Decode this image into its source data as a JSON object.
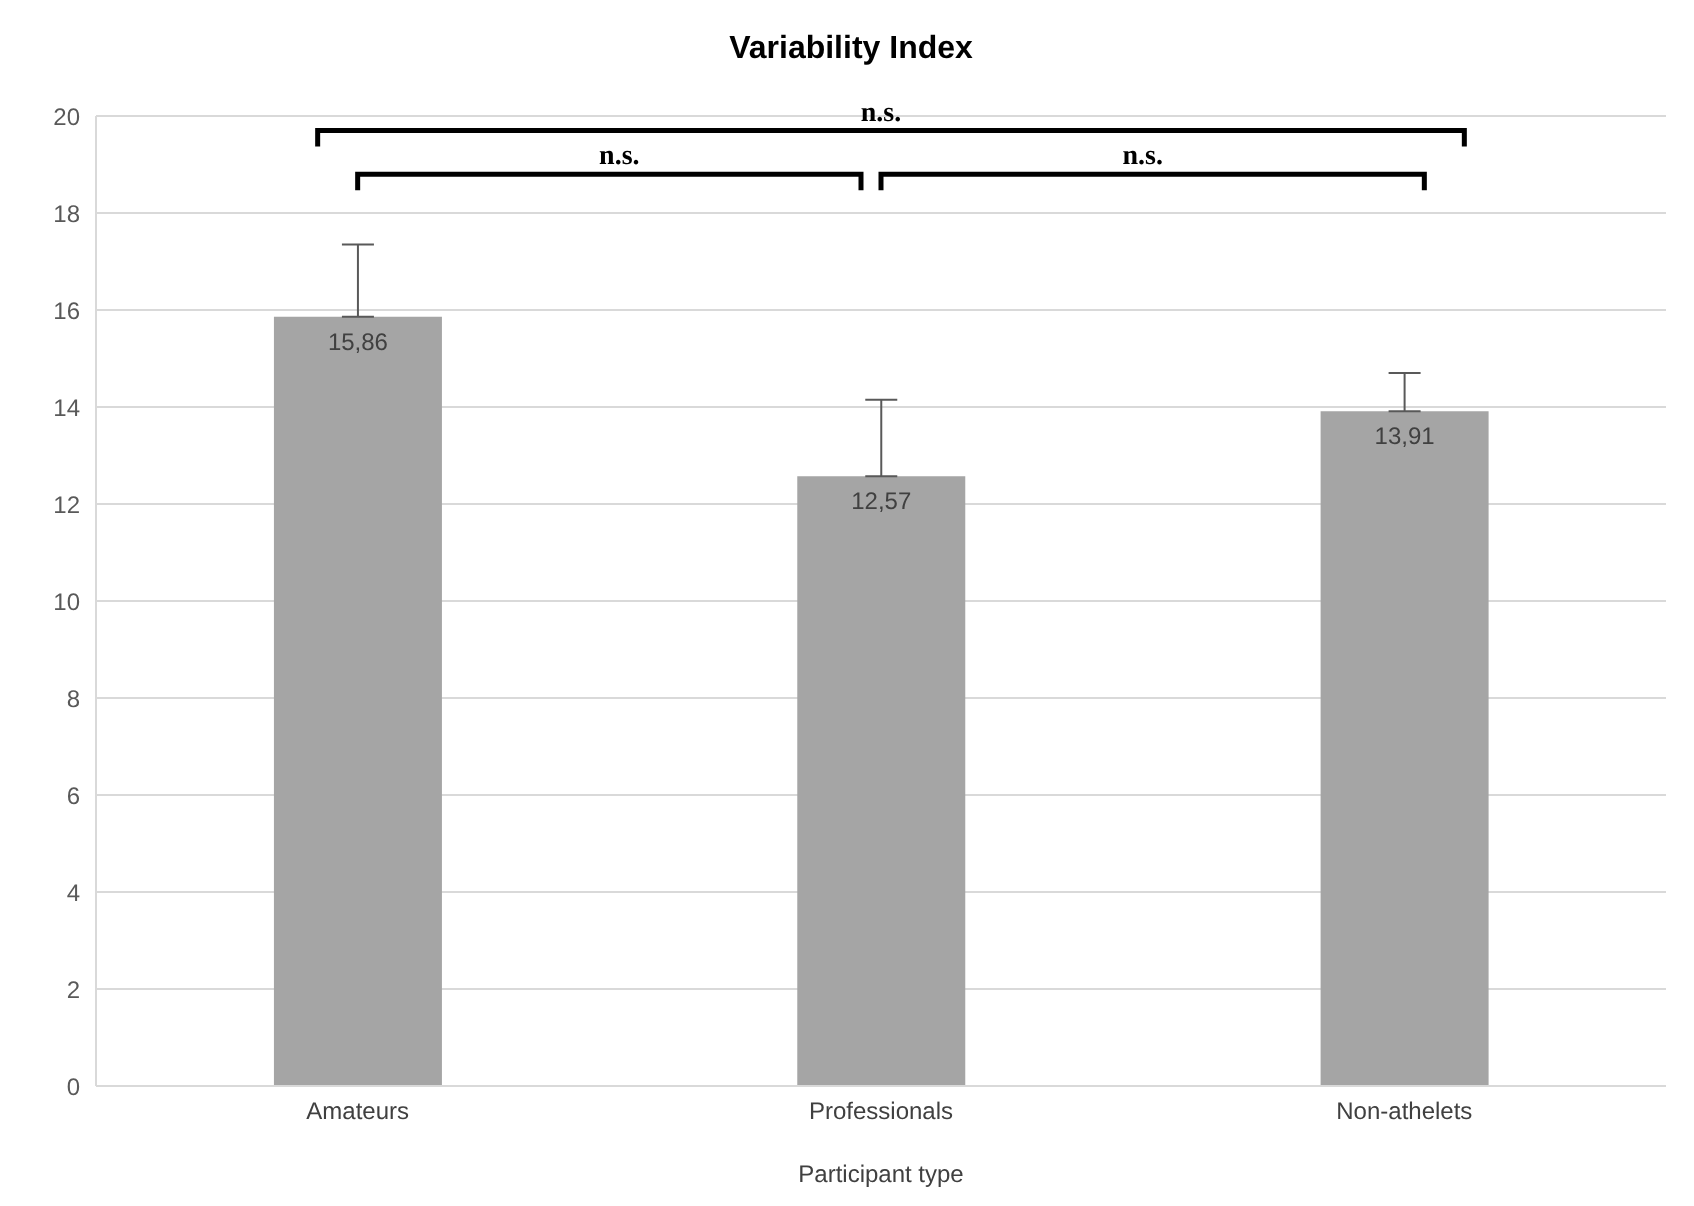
{
  "chart_data": {
    "type": "bar",
    "title": "Variability Index",
    "xlabel": "Participant type",
    "categories": [
      "Amateurs",
      "Professionals",
      "Non-athelets"
    ],
    "values": [
      15.86,
      12.57,
      13.91
    ],
    "value_labels": [
      "15,86",
      "12,57",
      "13,91"
    ],
    "errors": [
      [
        15.86,
        17.35
      ],
      [
        12.57,
        14.15
      ],
      [
        13.91,
        14.7
      ]
    ],
    "color": "#a5a5a5",
    "ylim": [
      0,
      20
    ],
    "yticks": [
      0,
      2,
      4,
      6,
      8,
      10,
      12,
      14,
      16,
      18,
      20
    ],
    "grid": "y",
    "annotations": [
      "n.s.",
      "n.s.",
      "n.s."
    ]
  }
}
